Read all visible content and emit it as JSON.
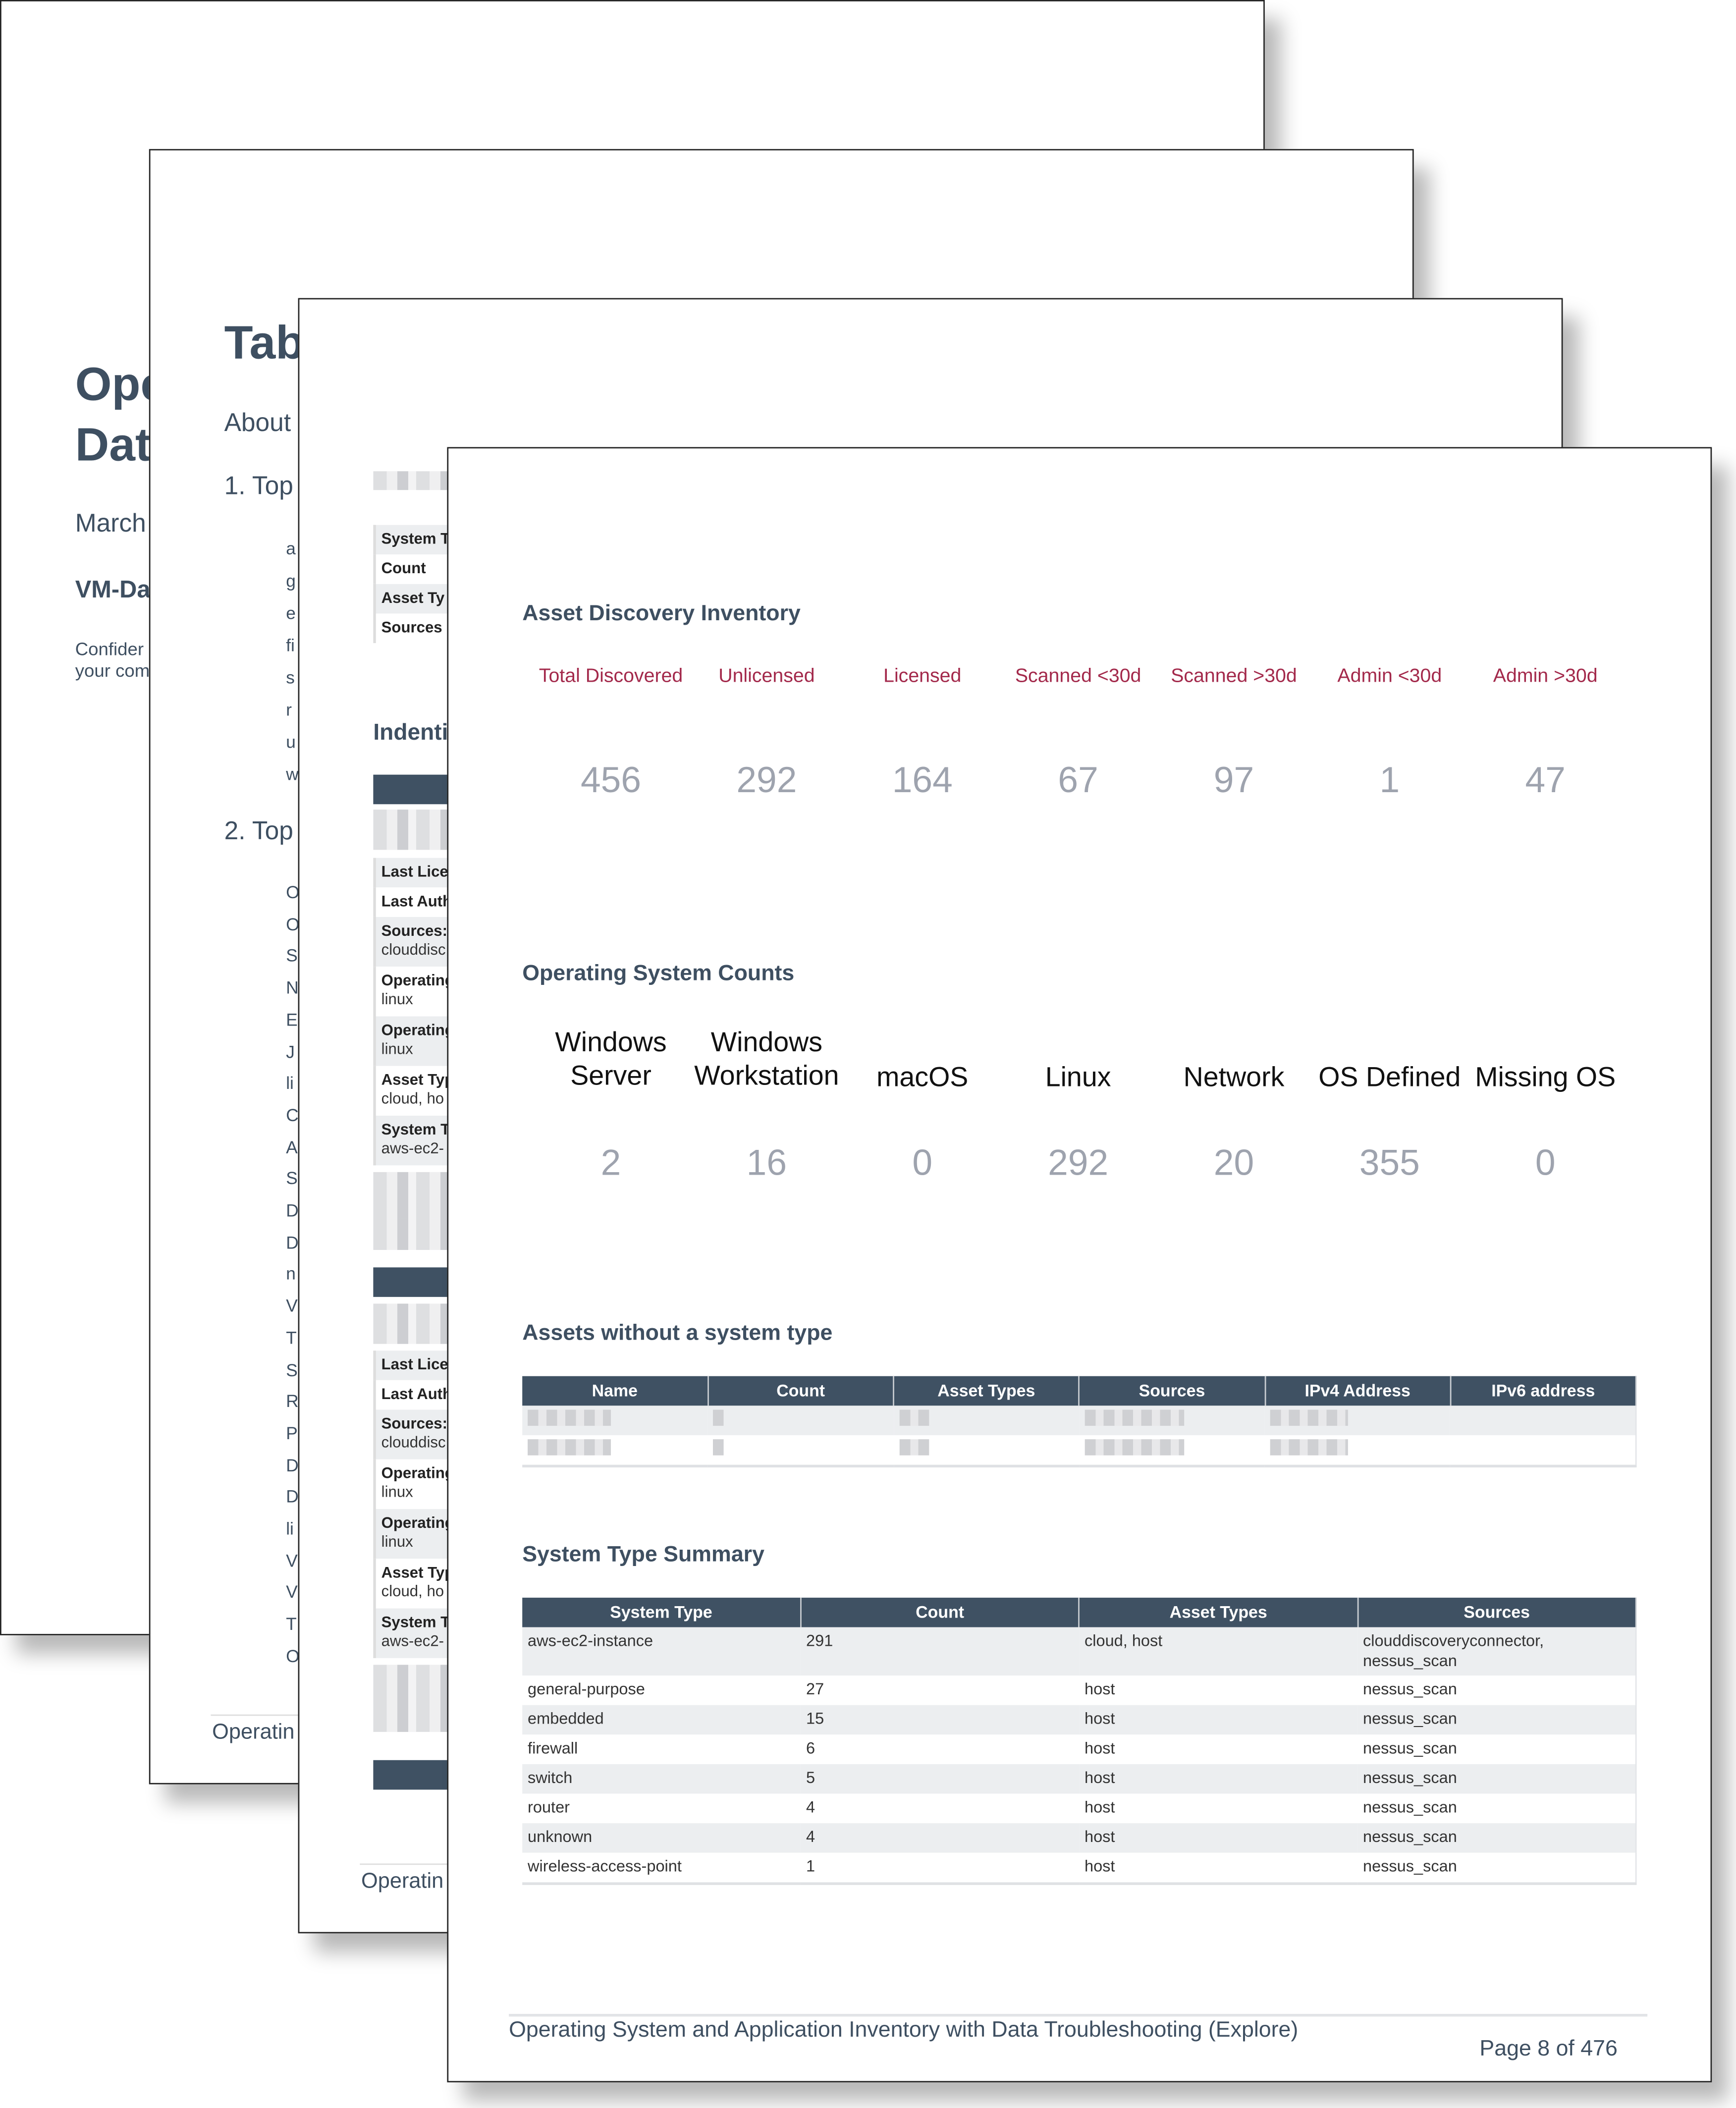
{
  "page1": {
    "title_line1": "Ope",
    "title_line2": "Dat",
    "date": "March",
    "subtitle": "VM-Da",
    "note_line1": "Confider",
    "note_line2": "your com"
  },
  "page2": {
    "title": "Tab",
    "about": "About",
    "section1": "1. Top",
    "section1_items": [
      "a",
      "g",
      "e",
      "fi",
      "s",
      "r",
      "u",
      "w"
    ],
    "section2": "2. Top",
    "section2_items": [
      "O",
      "O",
      "S",
      "N",
      "E",
      "J",
      "li",
      "C",
      "A",
      "S",
      "D",
      "D",
      "n",
      "V",
      "T",
      "S",
      "R",
      "P",
      "D",
      "D",
      "li",
      "V",
      "V",
      "T",
      "O"
    ],
    "footer": "Operatin"
  },
  "page3": {
    "summary_keys": [
      "System T",
      "Count",
      "Asset Ty",
      "Sources"
    ],
    "heading": "Indenti",
    "record_keys": [
      {
        "k": "Last Lice",
        "v": ""
      },
      {
        "k": "Last Auth",
        "v": ""
      },
      {
        "k": "Sources:",
        "v": "clouddisc"
      },
      {
        "k": "Operating",
        "v": "linux"
      },
      {
        "k": "Operating",
        "v": "linux"
      },
      {
        "k": "Asset Typ",
        "v": "cloud, ho"
      },
      {
        "k": "System T",
        "v": "aws-ec2-"
      }
    ],
    "footer": "Operatin"
  },
  "page4": {
    "inventory": {
      "title": "Asset Discovery Inventory",
      "tiles": [
        {
          "label": "Total Discovered",
          "value": "456"
        },
        {
          "label": "Unlicensed",
          "value": "292"
        },
        {
          "label": "Licensed",
          "value": "164"
        },
        {
          "label": "Scanned <30d",
          "value": "67"
        },
        {
          "label": "Scanned >30d",
          "value": "97"
        },
        {
          "label": "Admin <30d",
          "value": "1"
        },
        {
          "label": "Admin >30d",
          "value": "47"
        }
      ]
    },
    "os_counts": {
      "title": "Operating System Counts",
      "tiles": [
        {
          "label": "Windows Server",
          "value": "2"
        },
        {
          "label": "Windows Workstation",
          "value": "16"
        },
        {
          "label": "macOS",
          "value": "0"
        },
        {
          "label": "Linux",
          "value": "292"
        },
        {
          "label": "Network",
          "value": "20"
        },
        {
          "label": "OS Defined",
          "value": "355"
        },
        {
          "label": "Missing OS",
          "value": "0"
        }
      ]
    },
    "no_system_type": {
      "title": "Assets without a system type",
      "columns": [
        "Name",
        "Count",
        "Asset Types",
        "Sources",
        "IPv4 Address",
        "IPv6 address"
      ]
    },
    "system_type_summary": {
      "title": "System Type Summary",
      "columns": [
        "System Type",
        "Count",
        "Asset Types",
        "Sources"
      ],
      "rows": [
        [
          "aws-ec2-instance",
          "291",
          "cloud, host",
          "clouddiscoveryconnector, nessus_scan"
        ],
        [
          "general-purpose",
          "27",
          "host",
          "nessus_scan"
        ],
        [
          "embedded",
          "15",
          "host",
          "nessus_scan"
        ],
        [
          "firewall",
          "6",
          "host",
          "nessus_scan"
        ],
        [
          "switch",
          "5",
          "host",
          "nessus_scan"
        ],
        [
          "router",
          "4",
          "host",
          "nessus_scan"
        ],
        [
          "unknown",
          "4",
          "host",
          "nessus_scan"
        ],
        [
          "wireless-access-point",
          "1",
          "host",
          "nessus_scan"
        ]
      ]
    },
    "footer": {
      "report_title": "Operating System and Application Inventory with Data Troubleshooting (Explore)",
      "page_label": "Page 8 of 476"
    }
  },
  "colors": {
    "heading": "#3e4f61",
    "tile_label": "#a3294b",
    "tile_value": "#9ea3ae",
    "table_header": "#3f5163",
    "row_alt": "#eceef0"
  }
}
